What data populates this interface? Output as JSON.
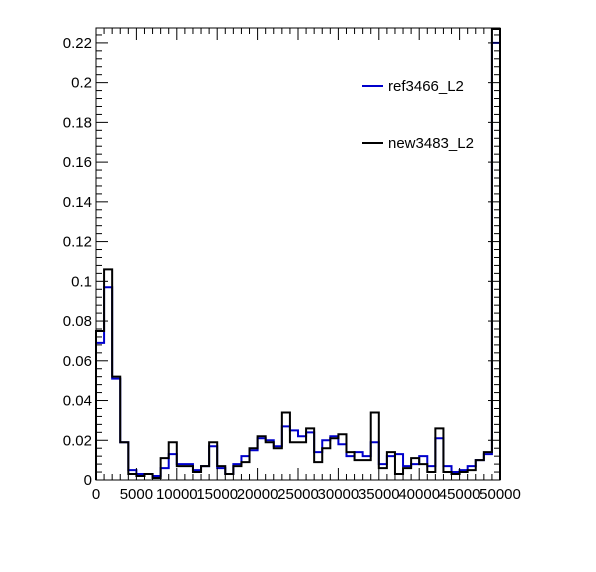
{
  "chart_data": {
    "type": "histogram",
    "title": "",
    "xlabel": "",
    "ylabel": "",
    "xlim": [
      0,
      50000
    ],
    "ylim": [
      0,
      0.2275
    ],
    "bin_width": 1000,
    "x_major_ticks": [
      0,
      5000,
      10000,
      15000,
      20000,
      25000,
      30000,
      35000,
      40000,
      45000,
      50000
    ],
    "x_tick_labels": [
      "0",
      "5000",
      "10000",
      "15000",
      "20000",
      "25000",
      "30000",
      "35000",
      "40000",
      "45000",
      "50000"
    ],
    "y_major_ticks": [
      0,
      0.02,
      0.04,
      0.06,
      0.08,
      0.1,
      0.12,
      0.14,
      0.16,
      0.18,
      0.2,
      0.22
    ],
    "y_tick_labels": [
      "0",
      "0.02",
      "0.04",
      "0.06",
      "0.08",
      "0.1",
      "0.12",
      "0.14",
      "0.16",
      "0.18",
      "0.2",
      "0.22"
    ],
    "legend_position": "top-right",
    "grid": false,
    "series": [
      {
        "name": "ref3466_L2",
        "color": "#0000cc",
        "values": [
          0.069,
          0.097,
          0.051,
          0.019,
          0.005,
          0.003,
          0.003,
          0.002,
          0.006,
          0.013,
          0.008,
          0.008,
          0.005,
          0.007,
          0.017,
          0.006,
          0.003,
          0.008,
          0.012,
          0.015,
          0.021,
          0.02,
          0.017,
          0.027,
          0.025,
          0.022,
          0.024,
          0.014,
          0.02,
          0.022,
          0.018,
          0.012,
          0.014,
          0.012,
          0.019,
          0.008,
          0.012,
          0.013,
          0.007,
          0.008,
          0.012,
          0.007,
          0.021,
          0.007,
          0.004,
          0.005,
          0.007,
          0.01,
          0.013,
          0.22
        ]
      },
      {
        "name": "new3483_L2",
        "color": "#000000",
        "values": [
          0.075,
          0.106,
          0.052,
          0.019,
          0.003,
          0.002,
          0.003,
          0.001,
          0.011,
          0.019,
          0.007,
          0.007,
          0.004,
          0.007,
          0.019,
          0.007,
          0.003,
          0.007,
          0.009,
          0.016,
          0.022,
          0.019,
          0.016,
          0.034,
          0.019,
          0.019,
          0.026,
          0.009,
          0.016,
          0.021,
          0.023,
          0.014,
          0.01,
          0.01,
          0.034,
          0.006,
          0.014,
          0.003,
          0.006,
          0.011,
          0.008,
          0.004,
          0.026,
          0.004,
          0.003,
          0.004,
          0.005,
          0.01,
          0.014,
          0.227
        ]
      }
    ]
  }
}
